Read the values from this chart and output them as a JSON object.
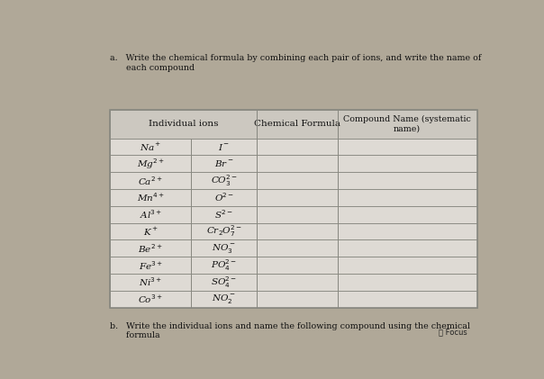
{
  "title_a": "a.   Write the chemical formula by combining each pair of ions, and write the name of\n      each compound",
  "title_b": "b.   Write the individual ions and name the following compound using the chemical\n      formula",
  "header": [
    "Individual ions",
    "Chemical Formula",
    "Compound Name (systematic\nname)"
  ],
  "rows": [
    [
      "Na$^+$",
      "I$^-$"
    ],
    [
      "Mg$^{2+}$",
      "Br$^-$"
    ],
    [
      "Ca$^{2+}$",
      "CO$_3^{2-}$"
    ],
    [
      "Mn$^{4+}$",
      "O$^{2-}$"
    ],
    [
      "Al$^{3+}$",
      "S$^{2-}$"
    ],
    [
      "K$^+$",
      "Cr$_2$O$_7^{2-}$"
    ],
    [
      "Be$^{2+}$",
      "NO$_3^-$"
    ],
    [
      "Fe$^{3+}$",
      "PO$_4^{2-}$"
    ],
    [
      "Ni$^{3+}$",
      "SO$_4^{2-}$"
    ],
    [
      "Co$^{3+}$",
      "NO$_2^-$"
    ]
  ],
  "page_bg": "#b0a898",
  "table_bg": "#dedad4",
  "cell_bg": "#dedad4",
  "header_bg": "#ccc8c0",
  "line_color": "#888880",
  "text_color": "#111111",
  "focus_text": "⌖ Focus"
}
